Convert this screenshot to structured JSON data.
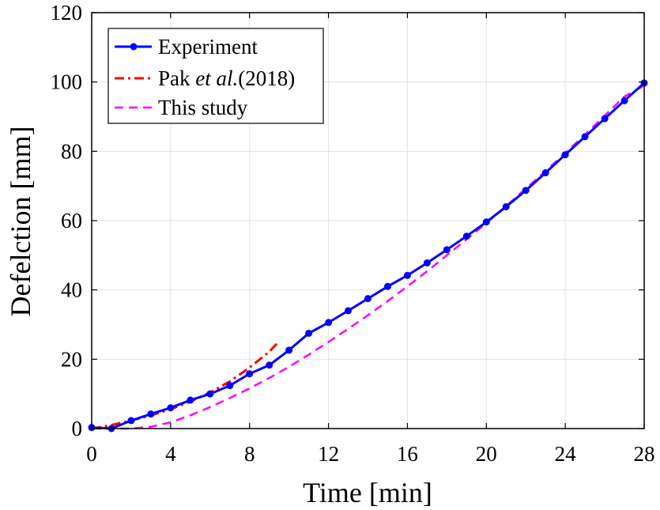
{
  "chart_data": {
    "type": "line",
    "xlabel": "Time  [min]",
    "ylabel": "Defelction  [mm]",
    "xlim": [
      0,
      28
    ],
    "ylim": [
      0,
      120
    ],
    "xticks": [
      0,
      4,
      8,
      12,
      16,
      20,
      24,
      28
    ],
    "yticks": [
      0,
      20,
      40,
      60,
      80,
      100,
      120
    ],
    "grid": true,
    "legend_position": "top-left",
    "series": [
      {
        "name": "Experiment",
        "color": "#0000ff",
        "style": "solid-marker",
        "x": [
          0,
          1,
          2,
          3,
          4,
          5,
          6,
          7,
          8,
          9,
          10,
          11,
          12,
          13,
          14,
          15,
          16,
          17,
          18,
          19,
          20,
          21,
          22,
          23,
          24,
          25,
          26,
          27,
          28
        ],
        "y": [
          0.3,
          0,
          2.3,
          4.2,
          6.0,
          8.2,
          10.0,
          12.4,
          15.8,
          18.3,
          22.6,
          27.5,
          30.6,
          34.0,
          37.5,
          41.0,
          44.2,
          47.8,
          51.6,
          55.5,
          59.6,
          64.0,
          68.7,
          73.8,
          79.0,
          84.2,
          89.4,
          94.6,
          99.7
        ]
      },
      {
        "name": "Pak et al.(2018)",
        "legend_parts": [
          "Pak ",
          "et al.",
          "(2018)"
        ],
        "color": "#ff0000",
        "style": "dashdot",
        "x": [
          0,
          1,
          2,
          3,
          4,
          5,
          6,
          7,
          8,
          9,
          9.5
        ],
        "y": [
          0,
          1.0,
          2.3,
          3.8,
          5.6,
          7.8,
          10.4,
          13.6,
          17.6,
          22.2,
          25.2
        ]
      },
      {
        "name": "This study",
        "color": "#ff00ff",
        "style": "dashed",
        "x": [
          0,
          1,
          2,
          3,
          4,
          5,
          6,
          7,
          8,
          9,
          10,
          11,
          12,
          13,
          14,
          15,
          16,
          17,
          18,
          19,
          20,
          21,
          22,
          23,
          24,
          25,
          26,
          27,
          28
        ],
        "y": [
          0,
          0,
          0,
          0.5,
          1.8,
          3.8,
          6.2,
          8.8,
          11.6,
          14.6,
          17.8,
          21.3,
          25.0,
          28.8,
          32.7,
          36.8,
          41.0,
          45.4,
          50.0,
          54.6,
          59.3,
          64.2,
          69.2,
          74.3,
          79.5,
          84.8,
          90.3,
          95.8,
          99.0
        ]
      }
    ]
  }
}
